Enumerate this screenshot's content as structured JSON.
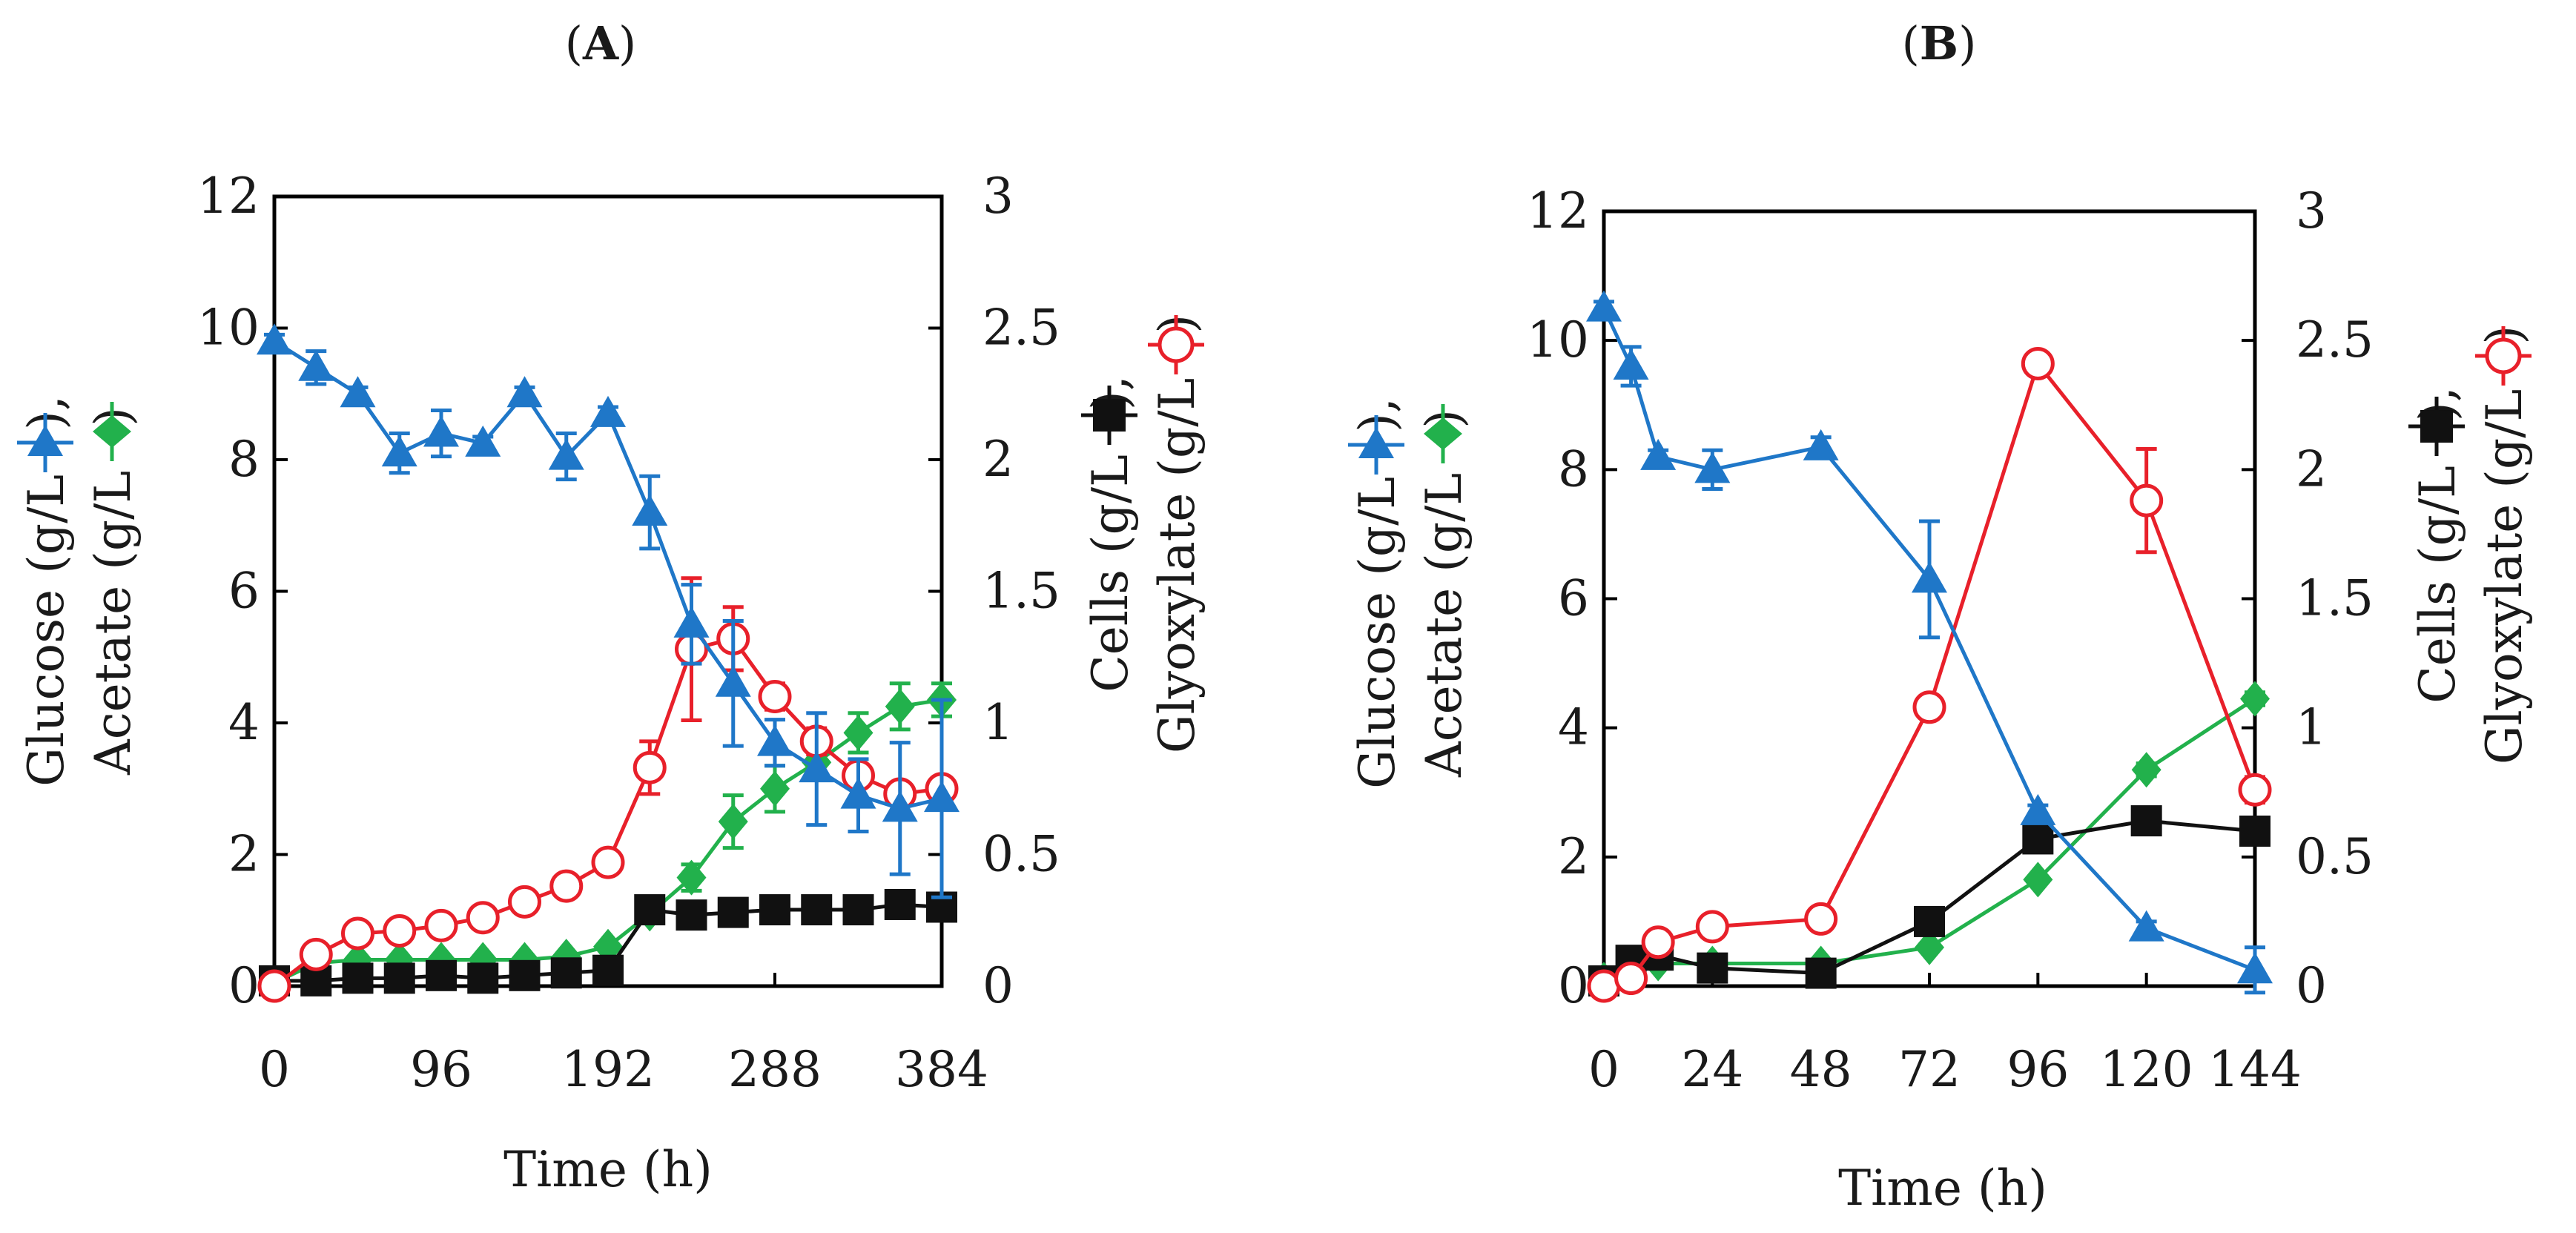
{
  "panels": [
    {
      "label_open": "(",
      "label": "A",
      "label_close": ")"
    },
    {
      "label_open": "(",
      "label": "B",
      "label_close": ")"
    }
  ],
  "legend_icons": {
    "glucose": "blue-triangle-icon",
    "acetate": "green-diamond-icon",
    "cells": "black-square-icon",
    "glyoxylate": "red-open-circle-icon"
  },
  "chart_data": [
    {
      "type": "line",
      "panel": "A",
      "xlabel": "Time (h)",
      "ylabel_left": {
        "line1": "Glucose (g/L",
        "line1_end": "),",
        "line2": "Acetate (g/L",
        "line2_end": ")"
      },
      "ylabel_right": {
        "line1": "Cells (g/L",
        "line1_end": "),",
        "line2": "Glyoxylate (g/L",
        "line2_end": ")"
      },
      "xlim": [
        0,
        384
      ],
      "xticks": [
        0,
        96,
        192,
        288,
        384
      ],
      "ylim_left": [
        0,
        12
      ],
      "yticks_left": [
        0,
        2,
        4,
        6,
        8,
        10,
        12
      ],
      "ylim_right": [
        0,
        3
      ],
      "yticks_right": [
        0,
        0.5,
        1,
        1.5,
        2,
        2.5,
        3
      ],
      "grid": false,
      "series": [
        {
          "name": "Glucose",
          "axis": "left",
          "color": "#1f77c8",
          "marker": "triangle",
          "x": [
            0,
            24,
            48,
            72,
            96,
            120,
            144,
            168,
            192,
            216,
            240,
            264,
            288,
            312,
            336,
            360,
            384
          ],
          "y": [
            9.8,
            9.4,
            9.0,
            8.1,
            8.4,
            8.25,
            9.0,
            8.05,
            8.7,
            7.2,
            5.5,
            4.6,
            3.7,
            3.3,
            2.9,
            2.7,
            2.85
          ],
          "err": [
            0.1,
            0.25,
            0.1,
            0.3,
            0.35,
            0.1,
            0.1,
            0.35,
            0.1,
            0.55,
            0.6,
            0.95,
            0.35,
            0.85,
            0.55,
            1.0,
            1.5
          ]
        },
        {
          "name": "Acetate",
          "axis": "left",
          "color": "#22b14c",
          "marker": "diamond",
          "x": [
            0,
            24,
            48,
            72,
            96,
            120,
            144,
            168,
            192,
            216,
            240,
            264,
            288,
            312,
            336,
            360,
            384
          ],
          "y": [
            0.05,
            0.35,
            0.4,
            0.4,
            0.4,
            0.4,
            0.4,
            0.45,
            0.6,
            1.1,
            1.65,
            2.5,
            3.0,
            3.4,
            3.85,
            4.25,
            4.35
          ],
          "err": [
            0,
            0.05,
            0.05,
            0.05,
            0.05,
            0.05,
            0.05,
            0.05,
            0.05,
            0.1,
            0.2,
            0.4,
            0.35,
            0.25,
            0.3,
            0.35,
            0.25
          ]
        },
        {
          "name": "Cells",
          "axis": "right",
          "color": "#111111",
          "marker": "square",
          "x": [
            0,
            24,
            48,
            72,
            96,
            120,
            144,
            168,
            192,
            216,
            240,
            264,
            288,
            312,
            336,
            360,
            384
          ],
          "y": [
            0.02,
            0.02,
            0.03,
            0.03,
            0.04,
            0.03,
            0.04,
            0.05,
            0.06,
            0.29,
            0.27,
            0.28,
            0.29,
            0.29,
            0.29,
            0.31,
            0.3
          ],
          "err": [
            0,
            0,
            0,
            0,
            0,
            0,
            0,
            0,
            0,
            0.02,
            0.03,
            0.02,
            0.02,
            0.02,
            0.02,
            0.02,
            0.02
          ]
        },
        {
          "name": "Glyoxylate",
          "axis": "right",
          "color": "#e8202a",
          "marker": "circle-open",
          "x": [
            0,
            24,
            48,
            72,
            96,
            120,
            144,
            168,
            192,
            216,
            240,
            264,
            288,
            312,
            336,
            360,
            384
          ],
          "y": [
            0.0,
            0.12,
            0.2,
            0.21,
            0.23,
            0.26,
            0.32,
            0.38,
            0.47,
            0.83,
            1.28,
            1.32,
            1.1,
            0.93,
            0.8,
            0.73,
            0.75
          ],
          "err": [
            0,
            0,
            0,
            0,
            0,
            0,
            0,
            0,
            0,
            0.1,
            0.27,
            0.12,
            0.05,
            0.05,
            0.04,
            0.03,
            0.03
          ]
        }
      ]
    },
    {
      "type": "line",
      "panel": "B",
      "xlabel": "Time (h)",
      "ylabel_left": {
        "line1": "Glucose (g/L",
        "line1_end": "),",
        "line2": "Acetate (g/L",
        "line2_end": ")"
      },
      "ylabel_right": {
        "line1": "Cells (g/L",
        "line1_end": "),",
        "line2": "Glyoxylate (g/L",
        "line2_end": ")"
      },
      "xlim": [
        0,
        144
      ],
      "xticks": [
        0,
        24,
        48,
        72,
        96,
        120,
        144
      ],
      "ylim_left": [
        0,
        12
      ],
      "yticks_left": [
        0,
        2,
        4,
        6,
        8,
        10,
        12
      ],
      "ylim_right": [
        0,
        3
      ],
      "yticks_right": [
        0,
        0.5,
        1,
        1.5,
        2,
        2.5,
        3
      ],
      "grid": false,
      "series": [
        {
          "name": "Glucose",
          "axis": "left",
          "color": "#1f77c8",
          "marker": "triangle",
          "x": [
            0,
            6,
            12,
            24,
            48,
            72,
            96,
            120,
            144
          ],
          "y": [
            10.5,
            9.6,
            8.2,
            8.0,
            8.35,
            6.3,
            2.7,
            0.9,
            0.25
          ],
          "err": [
            0.1,
            0.3,
            0.1,
            0.3,
            0.15,
            0.9,
            0.1,
            0.1,
            0.35
          ]
        },
        {
          "name": "Acetate",
          "axis": "left",
          "color": "#22b14c",
          "marker": "diamond",
          "x": [
            0,
            6,
            12,
            24,
            48,
            72,
            96,
            120,
            144
          ],
          "y": [
            0.1,
            0.3,
            0.35,
            0.35,
            0.35,
            0.6,
            1.65,
            3.35,
            4.45
          ],
          "err": [
            0,
            0,
            0,
            0,
            0,
            0.05,
            0.05,
            0.1,
            0.1
          ]
        },
        {
          "name": "Cells",
          "axis": "right",
          "color": "#111111",
          "marker": "square",
          "x": [
            0,
            6,
            12,
            24,
            48,
            72,
            96,
            120,
            144
          ],
          "y": [
            0.02,
            0.1,
            0.12,
            0.07,
            0.05,
            0.25,
            0.57,
            0.64,
            0.6
          ],
          "err": [
            0,
            0,
            0,
            0,
            0,
            0.02,
            0.03,
            0.03,
            0.03
          ]
        },
        {
          "name": "Glyoxylate",
          "axis": "right",
          "color": "#e8202a",
          "marker": "circle-open",
          "x": [
            0,
            6,
            12,
            24,
            48,
            72,
            96,
            120,
            144
          ],
          "y": [
            0.0,
            0.03,
            0.17,
            0.23,
            0.26,
            1.08,
            2.41,
            1.88,
            0.76
          ],
          "err": [
            0,
            0,
            0,
            0,
            0,
            0.03,
            0.03,
            0.2,
            0.05
          ]
        }
      ]
    }
  ]
}
